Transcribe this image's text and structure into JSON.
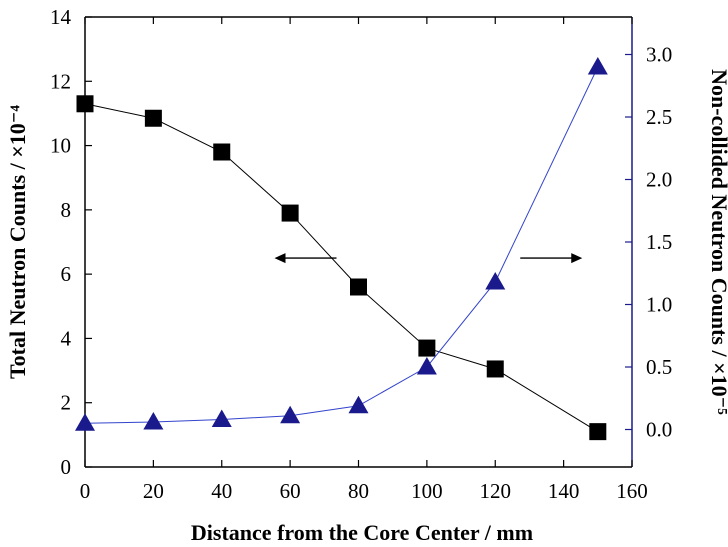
{
  "chart_data": {
    "type": "line",
    "xlabel": "Distance from the Core Center / mm",
    "ylabel_left": "Total Neutron Counts / ×10⁻⁴",
    "ylabel_right": "Non-collided Neutron Counts / ×10⁻⁵",
    "xlim": [
      0,
      160
    ],
    "ylim_left": [
      0,
      14
    ],
    "ylim_right": [
      -0.3,
      3.3
    ],
    "x_ticks": [
      "0",
      "20",
      "40",
      "60",
      "80",
      "100",
      "120",
      "140",
      "160"
    ],
    "y_left_ticks": [
      "0",
      "2",
      "4",
      "6",
      "8",
      "10",
      "12",
      "14"
    ],
    "y_right_ticks": [
      "0.0",
      "0.5",
      "1.0",
      "1.5",
      "2.0",
      "2.5",
      "3.0"
    ],
    "grid": false,
    "series": [
      {
        "axis": "left",
        "marker": "square",
        "color": "#000000",
        "x": [
          0,
          20,
          40,
          60,
          80,
          100,
          120,
          150
        ],
        "values": [
          11.3,
          10.85,
          9.8,
          7.9,
          5.6,
          3.7,
          3.05,
          1.1
        ]
      },
      {
        "axis": "right",
        "marker": "triangle",
        "color": "#1a1a8c",
        "x": [
          0,
          20,
          40,
          60,
          80,
          100,
          120,
          150
        ],
        "values": [
          0.05,
          0.06,
          0.08,
          0.11,
          0.19,
          0.5,
          1.18,
          2.9
        ]
      }
    ],
    "annotations": [
      {
        "text": "",
        "direction": "left",
        "at_x": 80,
        "at_y_left": 6.5
      },
      {
        "text": "",
        "direction": "right",
        "at_x": 120,
        "at_y_left": 6.5
      }
    ]
  },
  "colors": {
    "axis_right": "#1a1a8c",
    "line_left": "#000000",
    "line_right": "#3344cc",
    "marker_right": "#1a1a8c"
  }
}
